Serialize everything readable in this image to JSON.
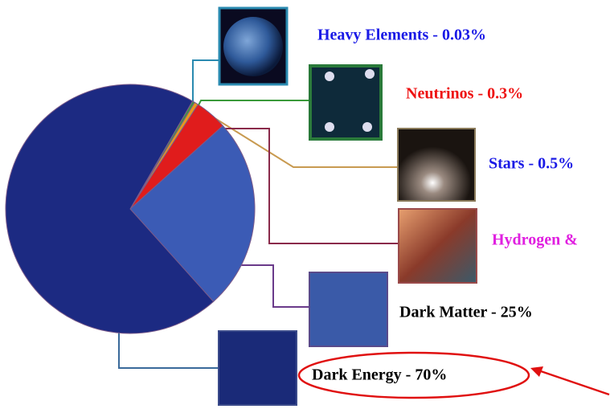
{
  "chart_data": {
    "type": "pie",
    "labels": [
      "Heavy Elements - 0.03%",
      "Neutrinos - 0.3%",
      "Stars - 0.5%",
      "Hydrogen &",
      "Dark Matter - 25%",
      "Dark Energy - 70%"
    ],
    "values": [
      0.03,
      0.3,
      0.5,
      4.2,
      25,
      70
    ],
    "colors": [
      "#2ab0b0",
      "#3a9a3a",
      "#e8981e",
      "#e01c1c",
      "#3b5bb5",
      "#1c2a82"
    ],
    "label_colors": [
      "#1a1ae6",
      "#ee1111",
      "#1a1ae6",
      "#e020e0",
      "#000000",
      "#000000"
    ]
  }
}
